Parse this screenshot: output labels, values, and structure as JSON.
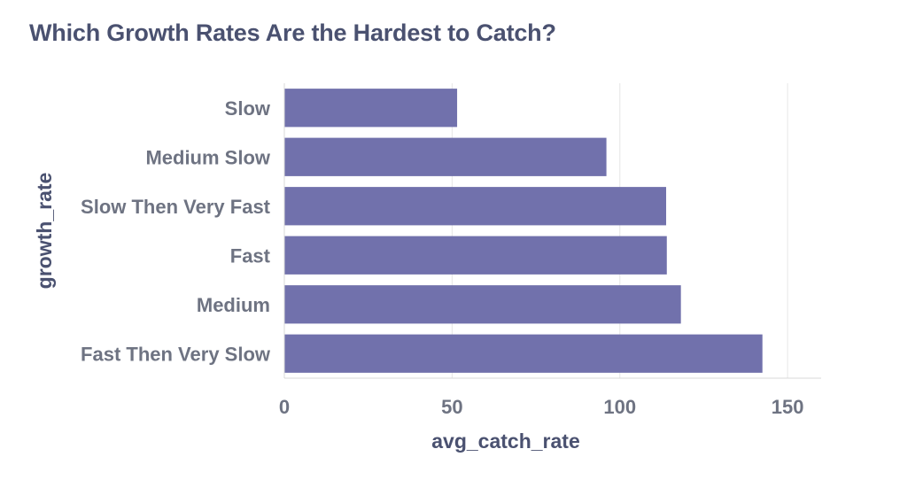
{
  "chart_data": {
    "type": "bar",
    "orientation": "horizontal",
    "title": "Which Growth Rates Are the Hardest to Catch?",
    "xlabel": "avg_catch_rate",
    "ylabel": "growth_rate",
    "categories": [
      "Slow",
      "Medium Slow",
      "Slow Then Very Fast",
      "Fast",
      "Medium",
      "Fast Then Very Slow"
    ],
    "values": [
      51.5,
      96.0,
      113.8,
      114.0,
      118.2,
      142.5
    ],
    "xlim": [
      0,
      160
    ],
    "x_ticks": [
      0,
      50,
      100,
      150
    ],
    "x_tick_labels": [
      "0",
      "50",
      "100",
      "150"
    ],
    "grid": "vertical",
    "bar_color": "#7171ac"
  }
}
